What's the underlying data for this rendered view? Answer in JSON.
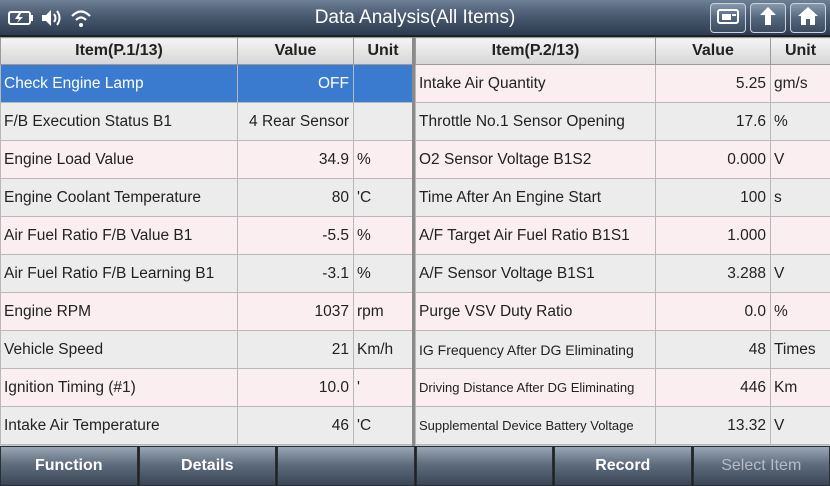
{
  "header": {
    "title": "Data Analysis(All Items)"
  },
  "left_table": {
    "col_item": "Item(P.1/13)",
    "col_value": "Value",
    "col_unit": "Unit",
    "rows": [
      {
        "name": "Check Engine Lamp",
        "value": "OFF",
        "unit": ""
      },
      {
        "name": "F/B Execution Status B1",
        "value": "4 Rear Sensor",
        "unit": ""
      },
      {
        "name": "Engine Load Value",
        "value": "34.9",
        "unit": "%"
      },
      {
        "name": "Engine Coolant Temperature",
        "value": "80",
        "unit": "'C"
      },
      {
        "name": "Air Fuel Ratio F/B Value B1",
        "value": "-5.5",
        "unit": "%"
      },
      {
        "name": "Air Fuel Ratio F/B Learning B1",
        "value": "-3.1",
        "unit": "%"
      },
      {
        "name": "Engine RPM",
        "value": "1037",
        "unit": "rpm"
      },
      {
        "name": "Vehicle Speed",
        "value": "21",
        "unit": "Km/h"
      },
      {
        "name": "Ignition Timing (#1)",
        "value": "10.0",
        "unit": "'"
      },
      {
        "name": "Intake Air Temperature",
        "value": "46",
        "unit": "'C"
      }
    ]
  },
  "right_table": {
    "col_item": "Item(P.2/13)",
    "col_value": "Value",
    "col_unit": "Unit",
    "rows": [
      {
        "name": "Intake Air Quantity",
        "value": "5.25",
        "unit": "gm/s"
      },
      {
        "name": "Throttle No.1 Sensor Opening",
        "value": "17.6",
        "unit": "%"
      },
      {
        "name": "O2 Sensor Voltage B1S2",
        "value": "0.000",
        "unit": "V"
      },
      {
        "name": "Time After An Engine Start",
        "value": "100",
        "unit": "s"
      },
      {
        "name": "A/F Target Air Fuel Ratio B1S1",
        "value": "1.000",
        "unit": ""
      },
      {
        "name": "A/F Sensor Voltage B1S1",
        "value": "3.288",
        "unit": "V"
      },
      {
        "name": "Purge VSV Duty Ratio",
        "value": "0.0",
        "unit": "%"
      },
      {
        "name": "IG Frequency After DG Eliminating",
        "value": "48",
        "unit": "Times"
      },
      {
        "name": "Driving Distance After DG Eliminating",
        "value": "446",
        "unit": "Km"
      },
      {
        "name": "Supplemental Device Battery Voltage",
        "value": "13.32",
        "unit": "V"
      }
    ]
  },
  "toolbar": {
    "function_label": "Function",
    "details_label": "Details",
    "record_label": "Record",
    "select_item_label": "Select Item"
  },
  "icons": {
    "battery": "battery-icon",
    "volume": "speaker-icon",
    "wifi": "wifi-icon",
    "print": "print-icon",
    "back": "back-arrow-icon",
    "home": "home-icon"
  },
  "colors": {
    "selected_row": "#3a7bd0",
    "odd_row": "#fbeef0",
    "even_row": "#ececec"
  }
}
